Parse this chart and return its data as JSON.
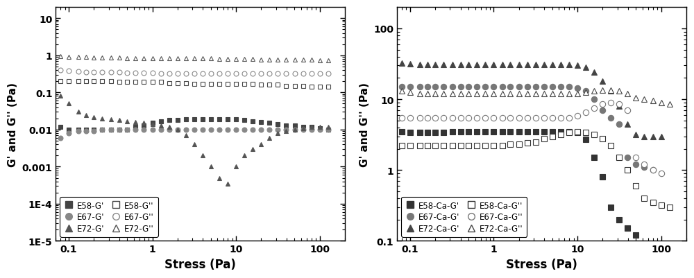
{
  "left": {
    "xlabel": "Stress (Pa)",
    "ylabel": "G' and G'' (Pa)",
    "xlim": [
      0.07,
      200
    ],
    "ylim": [
      1e-05,
      20
    ],
    "ytick_vals": [
      1e-05,
      0.0001,
      0.001,
      0.01,
      0.1,
      1,
      10
    ],
    "ytick_labels": [
      "1E-5",
      "1E-4",
      "0.001",
      "0.01",
      "0.1",
      "1",
      "10"
    ],
    "xtick_vals": [
      0.1,
      1,
      10,
      100
    ],
    "xtick_labels": [
      "0.1",
      "1",
      "10",
      "100"
    ],
    "series": [
      {
        "label": "E58-G'",
        "x": [
          0.08,
          0.1,
          0.13,
          0.16,
          0.2,
          0.25,
          0.32,
          0.4,
          0.5,
          0.63,
          0.79,
          1.0,
          1.26,
          1.58,
          2.0,
          2.51,
          3.16,
          3.98,
          5.01,
          6.31,
          7.94,
          10.0,
          12.6,
          15.8,
          20.0,
          25.1,
          31.6,
          39.8,
          50.1,
          63.1,
          79.4,
          100.0,
          125.8
        ],
        "y": [
          0.012,
          0.01,
          0.01,
          0.01,
          0.01,
          0.01,
          0.01,
          0.01,
          0.01,
          0.012,
          0.013,
          0.015,
          0.017,
          0.018,
          0.018,
          0.019,
          0.019,
          0.019,
          0.019,
          0.019,
          0.019,
          0.019,
          0.018,
          0.017,
          0.016,
          0.015,
          0.014,
          0.013,
          0.013,
          0.012,
          0.012,
          0.011,
          0.01
        ],
        "marker": "s",
        "filled": true,
        "color": "#444444"
      },
      {
        "label": "E67-G'",
        "x": [
          0.08,
          0.1,
          0.13,
          0.16,
          0.2,
          0.25,
          0.32,
          0.4,
          0.5,
          0.63,
          0.79,
          1.0,
          1.26,
          1.58,
          2.0,
          2.51,
          3.16,
          3.98,
          5.01,
          6.31,
          7.94,
          10.0,
          12.6,
          15.8,
          20.0,
          25.1,
          31.6,
          39.8,
          50.1,
          63.1,
          79.4,
          100.0,
          125.8
        ],
        "y": [
          0.006,
          0.008,
          0.009,
          0.009,
          0.009,
          0.01,
          0.01,
          0.01,
          0.01,
          0.01,
          0.01,
          0.01,
          0.01,
          0.01,
          0.01,
          0.01,
          0.01,
          0.01,
          0.01,
          0.01,
          0.01,
          0.01,
          0.01,
          0.01,
          0.01,
          0.01,
          0.01,
          0.01,
          0.01,
          0.01,
          0.01,
          0.01,
          0.01
        ],
        "marker": "o",
        "filled": true,
        "color": "#888888"
      },
      {
        "label": "E72-G'",
        "x": [
          0.08,
          0.1,
          0.13,
          0.16,
          0.2,
          0.25,
          0.32,
          0.4,
          0.5,
          0.63,
          0.79,
          1.0,
          1.26,
          1.58,
          2.0,
          2.51,
          3.16,
          3.98,
          5.01,
          6.31,
          7.94,
          10.0,
          12.6,
          15.8,
          20.0,
          25.1,
          31.6,
          39.8,
          50.1,
          63.1,
          79.4,
          100.0,
          125.8
        ],
        "y": [
          0.08,
          0.05,
          0.03,
          0.025,
          0.022,
          0.02,
          0.019,
          0.018,
          0.017,
          0.016,
          0.015,
          0.014,
          0.013,
          0.012,
          0.01,
          0.007,
          0.004,
          0.002,
          0.001,
          0.0005,
          0.00035,
          0.001,
          0.002,
          0.003,
          0.004,
          0.006,
          0.008,
          0.009,
          0.01,
          0.011,
          0.012,
          0.012,
          0.012
        ],
        "marker": "^",
        "filled": true,
        "color": "#555555"
      },
      {
        "label": "E58-G''",
        "x": [
          0.08,
          0.1,
          0.13,
          0.16,
          0.2,
          0.25,
          0.32,
          0.4,
          0.5,
          0.63,
          0.79,
          1.0,
          1.26,
          1.58,
          2.0,
          2.51,
          3.16,
          3.98,
          5.01,
          6.31,
          7.94,
          10.0,
          12.6,
          15.8,
          20.0,
          25.1,
          31.6,
          39.8,
          50.1,
          63.1,
          79.4,
          100.0,
          125.8
        ],
        "y": [
          0.2,
          0.2,
          0.2,
          0.2,
          0.2,
          0.2,
          0.2,
          0.19,
          0.19,
          0.19,
          0.19,
          0.19,
          0.19,
          0.18,
          0.18,
          0.18,
          0.17,
          0.17,
          0.17,
          0.17,
          0.17,
          0.17,
          0.17,
          0.17,
          0.16,
          0.16,
          0.16,
          0.15,
          0.15,
          0.15,
          0.14,
          0.14,
          0.14
        ],
        "marker": "s",
        "filled": false,
        "color": "#444444"
      },
      {
        "label": "E67-G''",
        "x": [
          0.08,
          0.1,
          0.13,
          0.16,
          0.2,
          0.25,
          0.32,
          0.4,
          0.5,
          0.63,
          0.79,
          1.0,
          1.26,
          1.58,
          2.0,
          2.51,
          3.16,
          3.98,
          5.01,
          6.31,
          7.94,
          10.0,
          12.6,
          15.8,
          20.0,
          25.1,
          31.6,
          39.8,
          50.1,
          63.1,
          79.4,
          100.0,
          125.8
        ],
        "y": [
          0.4,
          0.38,
          0.37,
          0.36,
          0.36,
          0.35,
          0.35,
          0.35,
          0.34,
          0.34,
          0.34,
          0.34,
          0.33,
          0.33,
          0.33,
          0.33,
          0.33,
          0.33,
          0.33,
          0.33,
          0.33,
          0.33,
          0.33,
          0.33,
          0.33,
          0.33,
          0.33,
          0.33,
          0.33,
          0.33,
          0.33,
          0.33,
          0.33
        ],
        "marker": "o",
        "filled": false,
        "color": "#888888"
      },
      {
        "label": "E72-G''",
        "x": [
          0.08,
          0.1,
          0.13,
          0.16,
          0.2,
          0.25,
          0.32,
          0.4,
          0.5,
          0.63,
          0.79,
          1.0,
          1.26,
          1.58,
          2.0,
          2.51,
          3.16,
          3.98,
          5.01,
          6.31,
          7.94,
          10.0,
          12.6,
          15.8,
          20.0,
          25.1,
          31.6,
          39.8,
          50.1,
          63.1,
          79.4,
          100.0,
          125.8
        ],
        "y": [
          0.95,
          0.92,
          0.9,
          0.89,
          0.88,
          0.87,
          0.87,
          0.86,
          0.85,
          0.85,
          0.85,
          0.85,
          0.84,
          0.84,
          0.83,
          0.83,
          0.83,
          0.82,
          0.82,
          0.81,
          0.81,
          0.8,
          0.79,
          0.79,
          0.78,
          0.78,
          0.77,
          0.77,
          0.76,
          0.76,
          0.75,
          0.74,
          0.74
        ],
        "marker": "^",
        "filled": false,
        "color": "#555555"
      }
    ],
    "legend_left": [
      {
        "label": "E58-G'",
        "marker": "s",
        "filled": true,
        "color": "#444444"
      },
      {
        "label": "E67-G'",
        "marker": "o",
        "filled": true,
        "color": "#888888"
      },
      {
        "label": "E72-G'",
        "marker": "^",
        "filled": true,
        "color": "#555555"
      }
    ],
    "legend_right": [
      {
        "label": "E58-G''",
        "marker": "s",
        "filled": false,
        "color": "#444444"
      },
      {
        "label": "E67-G''",
        "marker": "o",
        "filled": false,
        "color": "#888888"
      },
      {
        "label": "E72-G''",
        "marker": "^",
        "filled": false,
        "color": "#555555"
      }
    ]
  },
  "right": {
    "xlabel": "Stress (Pa)",
    "ylabel": "G' and G'' (Pa)",
    "xlim": [
      0.07,
      200
    ],
    "ylim": [
      0.1,
      200
    ],
    "ytick_vals": [
      0.1,
      1,
      10,
      100
    ],
    "ytick_labels": [
      "0.1",
      "1",
      "10",
      "100"
    ],
    "xtick_vals": [
      0.1,
      1,
      10,
      100
    ],
    "xtick_labels": [
      "0.1",
      "1",
      "10",
      "100"
    ],
    "series": [
      {
        "label": "E58-Ca-G'",
        "x": [
          0.08,
          0.1,
          0.13,
          0.16,
          0.2,
          0.25,
          0.32,
          0.4,
          0.5,
          0.63,
          0.79,
          1.0,
          1.26,
          1.58,
          2.0,
          2.51,
          3.16,
          3.98,
          5.01,
          6.31,
          7.94,
          10.0,
          12.6,
          15.8,
          20.0,
          25.1,
          31.6,
          39.8,
          50.1
        ],
        "y": [
          3.5,
          3.4,
          3.4,
          3.4,
          3.4,
          3.4,
          3.5,
          3.5,
          3.5,
          3.5,
          3.5,
          3.5,
          3.5,
          3.5,
          3.5,
          3.5,
          3.5,
          3.5,
          3.5,
          3.5,
          3.5,
          3.4,
          2.7,
          1.5,
          0.8,
          0.3,
          0.2,
          0.15,
          0.12
        ],
        "marker": "s",
        "filled": true,
        "color": "#333333"
      },
      {
        "label": "E67-Ca-G'",
        "x": [
          0.08,
          0.1,
          0.13,
          0.16,
          0.2,
          0.25,
          0.32,
          0.4,
          0.5,
          0.63,
          0.79,
          1.0,
          1.26,
          1.58,
          2.0,
          2.51,
          3.16,
          3.98,
          5.01,
          6.31,
          7.94,
          10.0,
          12.6,
          15.8,
          20.0,
          25.1,
          31.6,
          39.8,
          50.1,
          63.1,
          79.4
        ],
        "y": [
          15.0,
          15.0,
          15.0,
          15.0,
          15.0,
          15.0,
          15.0,
          15.0,
          15.0,
          15.0,
          15.0,
          15.0,
          15.0,
          15.0,
          15.0,
          15.0,
          15.0,
          15.0,
          15.0,
          15.0,
          15.0,
          14.5,
          13.0,
          10.0,
          7.0,
          5.5,
          4.5,
          1.5,
          1.2,
          1.1,
          1.0
        ],
        "marker": "o",
        "filled": true,
        "color": "#777777"
      },
      {
        "label": "E72-Ca-G'",
        "x": [
          0.08,
          0.1,
          0.13,
          0.16,
          0.2,
          0.25,
          0.32,
          0.4,
          0.5,
          0.63,
          0.79,
          1.0,
          1.26,
          1.58,
          2.0,
          2.51,
          3.16,
          3.98,
          5.01,
          6.31,
          7.94,
          10.0,
          12.6,
          15.8,
          20.0,
          25.1,
          31.6,
          39.8,
          50.1,
          63.1,
          79.4,
          100.0
        ],
        "y": [
          32.0,
          31.5,
          31.0,
          31.0,
          31.0,
          31.0,
          31.0,
          31.0,
          31.0,
          31.0,
          31.0,
          31.0,
          31.0,
          31.0,
          31.0,
          31.0,
          31.0,
          31.0,
          31.0,
          31.0,
          31.0,
          30.0,
          28.0,
          24.0,
          18.0,
          13.0,
          8.0,
          4.5,
          3.2,
          3.0,
          3.0,
          3.0
        ],
        "marker": "^",
        "filled": true,
        "color": "#444444"
      },
      {
        "label": "E58-Ca-G''",
        "x": [
          0.08,
          0.1,
          0.13,
          0.16,
          0.2,
          0.25,
          0.32,
          0.4,
          0.5,
          0.63,
          0.79,
          1.0,
          1.26,
          1.58,
          2.0,
          2.51,
          3.16,
          3.98,
          5.01,
          6.31,
          7.94,
          10.0,
          12.6,
          15.8,
          20.0,
          25.1,
          31.6,
          39.8,
          50.1,
          63.1,
          79.4,
          100.0,
          125.8
        ],
        "y": [
          2.2,
          2.2,
          2.2,
          2.2,
          2.2,
          2.2,
          2.2,
          2.2,
          2.2,
          2.2,
          2.2,
          2.2,
          2.2,
          2.3,
          2.3,
          2.4,
          2.5,
          2.8,
          3.0,
          3.2,
          3.4,
          3.5,
          3.4,
          3.2,
          2.8,
          2.2,
          1.5,
          1.0,
          0.6,
          0.4,
          0.35,
          0.32,
          0.3
        ],
        "marker": "s",
        "filled": false,
        "color": "#333333"
      },
      {
        "label": "E67-Ca-G''",
        "x": [
          0.08,
          0.1,
          0.13,
          0.16,
          0.2,
          0.25,
          0.32,
          0.4,
          0.5,
          0.63,
          0.79,
          1.0,
          1.26,
          1.58,
          2.0,
          2.51,
          3.16,
          3.98,
          5.01,
          6.31,
          7.94,
          10.0,
          12.6,
          15.8,
          20.0,
          25.1,
          31.6,
          39.8,
          50.1,
          63.1,
          79.4,
          100.0
        ],
        "y": [
          5.5,
          5.5,
          5.5,
          5.5,
          5.5,
          5.5,
          5.5,
          5.5,
          5.5,
          5.5,
          5.5,
          5.5,
          5.5,
          5.5,
          5.5,
          5.5,
          5.5,
          5.5,
          5.5,
          5.5,
          5.5,
          5.8,
          6.5,
          7.5,
          8.5,
          9.0,
          8.5,
          7.0,
          1.5,
          1.2,
          1.0,
          0.9
        ],
        "marker": "o",
        "filled": false,
        "color": "#777777"
      },
      {
        "label": "E72-Ca-G''",
        "x": [
          0.08,
          0.1,
          0.13,
          0.16,
          0.2,
          0.25,
          0.32,
          0.4,
          0.5,
          0.63,
          0.79,
          1.0,
          1.26,
          1.58,
          2.0,
          2.51,
          3.16,
          3.98,
          5.01,
          6.31,
          7.94,
          10.0,
          12.6,
          15.8,
          20.0,
          25.1,
          31.6,
          39.8,
          50.1,
          63.1,
          79.4,
          100.0,
          125.8
        ],
        "y": [
          13.0,
          12.5,
          12.0,
          12.0,
          12.0,
          12.0,
          12.0,
          12.0,
          12.0,
          12.0,
          12.0,
          12.0,
          12.0,
          12.0,
          12.0,
          12.0,
          12.0,
          12.0,
          12.0,
          12.0,
          12.0,
          12.0,
          12.5,
          13.0,
          13.5,
          13.5,
          13.0,
          12.0,
          10.5,
          10.0,
          9.5,
          9.0,
          8.5
        ],
        "marker": "^",
        "filled": false,
        "color": "#444444"
      }
    ],
    "legend_left": [
      {
        "label": "E58-Ca-G'",
        "marker": "s",
        "filled": true,
        "color": "#333333"
      },
      {
        "label": "E67-Ca-G'",
        "marker": "o",
        "filled": true,
        "color": "#777777"
      },
      {
        "label": "E72-Ca-G'",
        "marker": "^",
        "filled": true,
        "color": "#444444"
      }
    ],
    "legend_right": [
      {
        "label": "E58-Ca-G''",
        "marker": "s",
        "filled": false,
        "color": "#333333"
      },
      {
        "label": "E67-Ca-G''",
        "marker": "o",
        "filled": false,
        "color": "#777777"
      },
      {
        "label": "E72-Ca-G''",
        "marker": "^",
        "filled": false,
        "color": "#444444"
      }
    ]
  },
  "fig_width": 10.0,
  "fig_height": 4.02,
  "dpi": 100
}
